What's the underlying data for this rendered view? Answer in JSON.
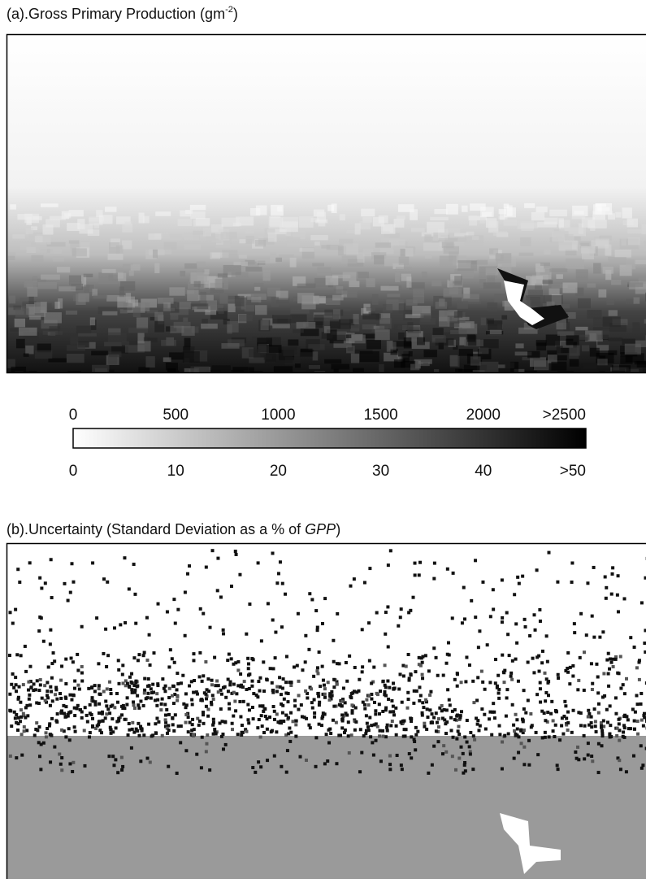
{
  "panel_a": {
    "title": "(a).Gross Primary Production (gm",
    "title_sup": "-2",
    "title_end": ")"
  },
  "colorbar": {
    "top_labels": [
      "0",
      "500",
      "1000",
      "1500",
      "2000",
      ">2500"
    ],
    "bottom_labels": [
      "0",
      "10",
      "20",
      "30",
      "40",
      ">50"
    ]
  },
  "panel_b": {
    "title": "(b).Uncertainty (Standard Deviation as a % of ",
    "title_em": "GPP",
    "title_end": ")"
  }
}
